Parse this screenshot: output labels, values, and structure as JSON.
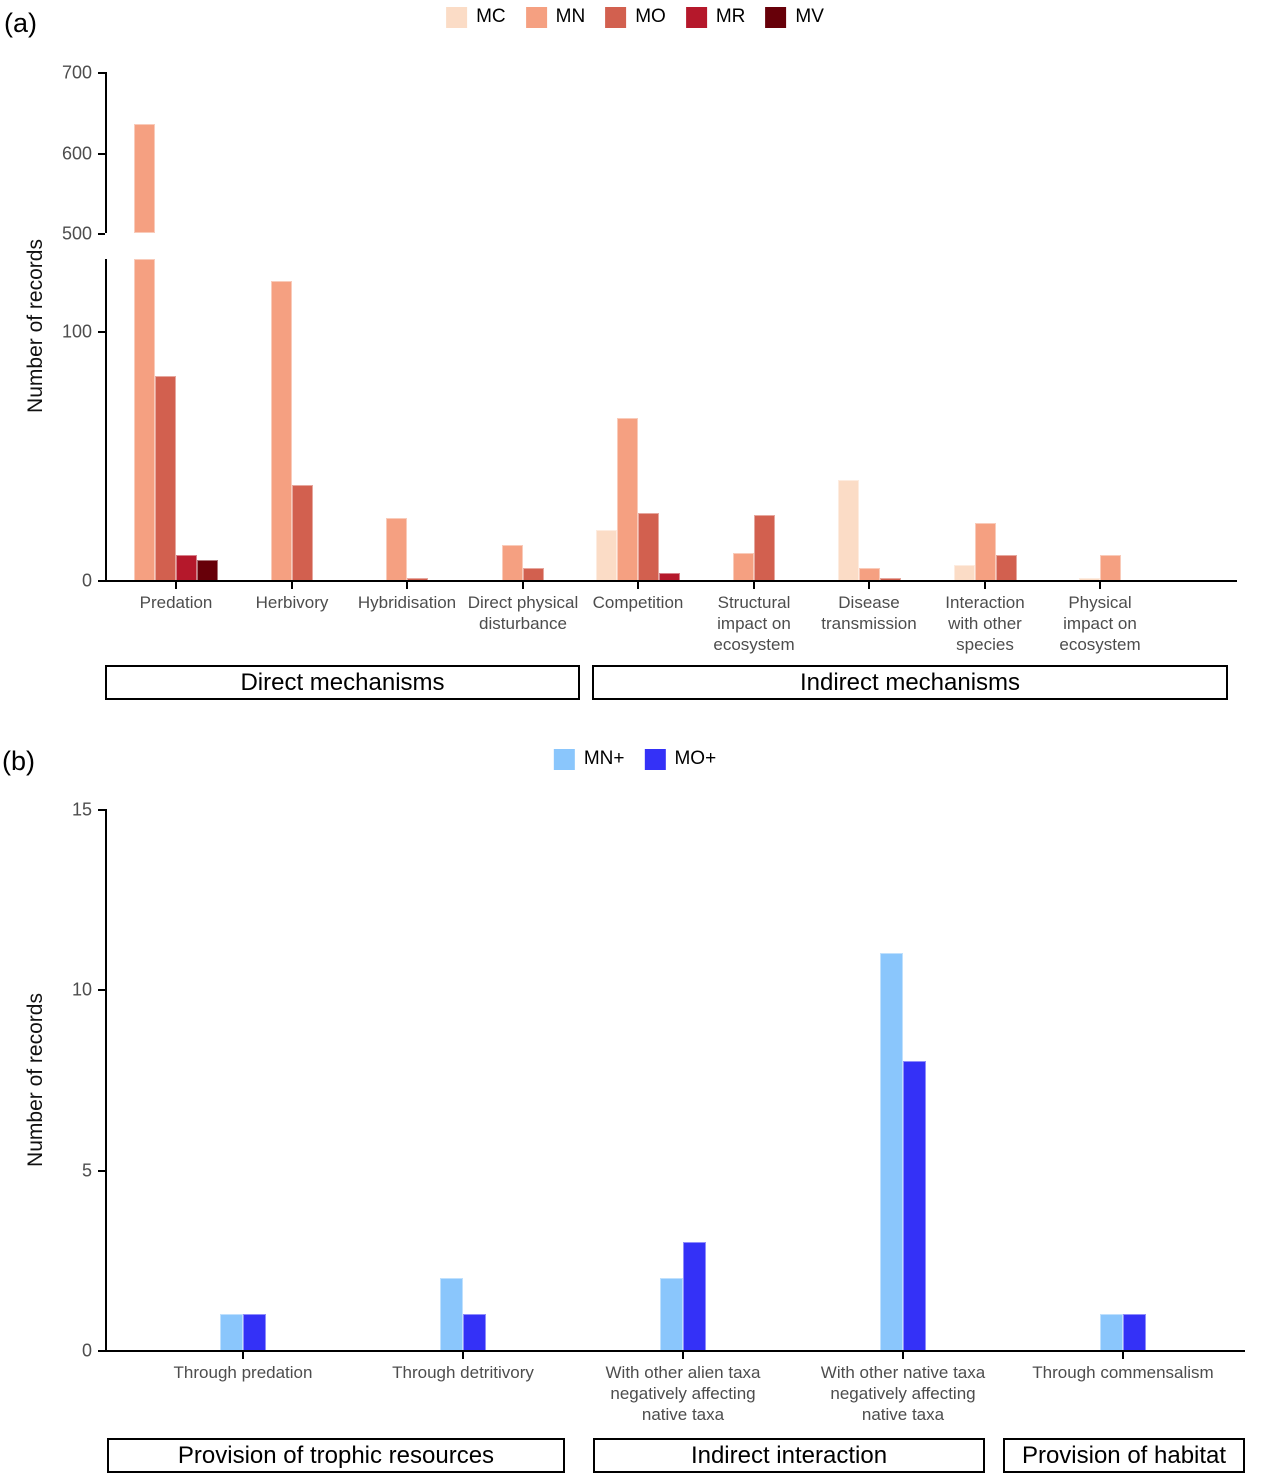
{
  "chart_data": [
    {
      "type": "bar",
      "panel": "(a)",
      "ylabel": "Number of records",
      "categories": [
        "Predation",
        "Herbivory",
        "Hybridisation",
        "Direct physical disturbance",
        "Competition",
        "Structural impact on ecosystem",
        "Disease transmission",
        "Interaction with other species",
        "Physical impact on ecosystem"
      ],
      "series": [
        {
          "name": "MC",
          "color": "#FBDCC6",
          "values": [
            null,
            null,
            null,
            null,
            20,
            null,
            40,
            6,
            1
          ]
        },
        {
          "name": "MN",
          "color": "#F5A081",
          "values": [
            635,
            120,
            25,
            14,
            65,
            11,
            5,
            23,
            10
          ]
        },
        {
          "name": "MO",
          "color": "#D2604F",
          "values": [
            82,
            38,
            1,
            5,
            27,
            26,
            1,
            10,
            null
          ]
        },
        {
          "name": "MR",
          "color": "#B5182B",
          "values": [
            10,
            null,
            null,
            null,
            3,
            null,
            null,
            null,
            null
          ]
        },
        {
          "name": "MV",
          "color": "#670009",
          "values": [
            8,
            null,
            null,
            null,
            null,
            null,
            null,
            null,
            null
          ]
        }
      ],
      "y_axis": {
        "upper_ticks": [
          700,
          600,
          500
        ],
        "lower_ticks": [
          100,
          0
        ],
        "break": {
          "lower_max": 129,
          "upper_min": 500
        },
        "ylim": [
          0,
          700
        ]
      },
      "legend_position": "top",
      "grid": false,
      "group_boxes": [
        {
          "label": "Direct mechanisms",
          "category_span": [
            0,
            3
          ]
        },
        {
          "label": "Indirect mechanisms",
          "category_span": [
            4,
            8
          ]
        }
      ]
    },
    {
      "type": "bar",
      "panel": "(b)",
      "ylabel": "Number of records",
      "categories": [
        "Through predation",
        "Through detritivory",
        "With other alien taxa negatively affecting native taxa",
        "With other native taxa negatively affecting native taxa",
        "Through commensalism"
      ],
      "series": [
        {
          "name": "MN+",
          "color": "#8AC6FC",
          "values": [
            1,
            2,
            2,
            11,
            1
          ]
        },
        {
          "name": "MO+",
          "color": "#3431F7",
          "values": [
            1,
            1,
            3,
            8,
            1
          ]
        }
      ],
      "y_axis": {
        "ticks": [
          0,
          5,
          10,
          15
        ],
        "ylim": [
          0,
          15
        ]
      },
      "legend_position": "top",
      "grid": false,
      "group_boxes": [
        {
          "label": "Provision of trophic resources",
          "category_span": [
            0,
            1
          ]
        },
        {
          "label": "Indirect interaction",
          "category_span": [
            2,
            3
          ]
        },
        {
          "label": "Provision of habitat",
          "category_span": [
            4,
            4
          ]
        }
      ]
    }
  ]
}
